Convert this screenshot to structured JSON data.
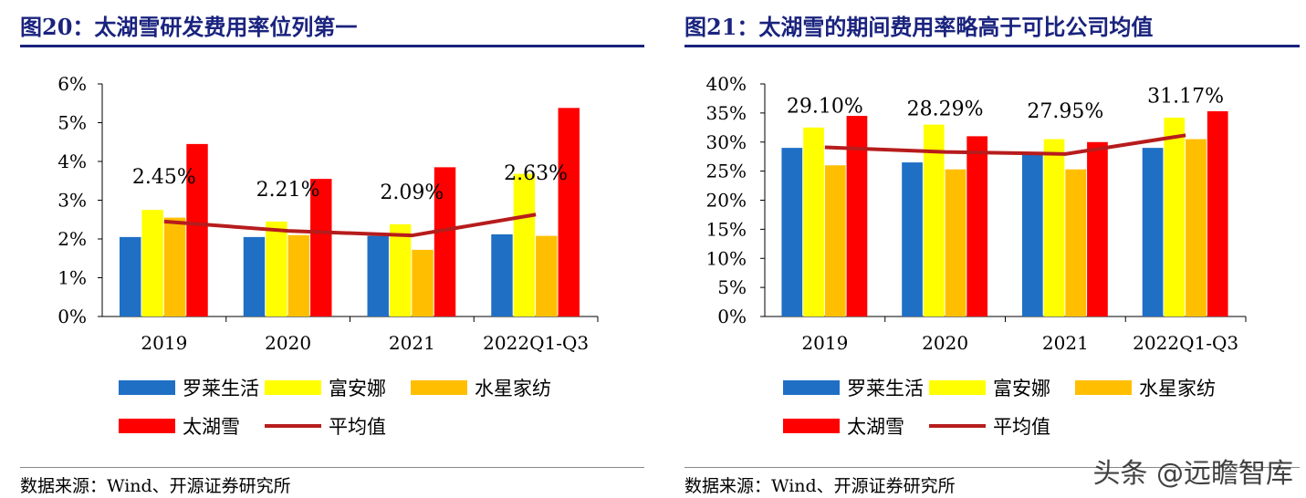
{
  "panels": [
    {
      "title": "图20：太湖雪研发费用率位列第一",
      "source": "数据来源：Wind、开源证券研究所"
    },
    {
      "title": "图21：太湖雪的期间费用率略高于可比公司均值",
      "source": "数据来源：Wind、开源证券研究所"
    }
  ],
  "watermark": "头条 @远瞻智库",
  "colors": {
    "罗莱生活": "#1f6fc5",
    "富安娜": "#ffff00",
    "水星家纺": "#ffbf00",
    "太湖雪": "#ff0000",
    "平均值": "#b71c1c",
    "title": "#1a237e"
  },
  "chart_data": [
    {
      "type": "bar",
      "title": "图20：太湖雪研发费用率位列第一",
      "categories": [
        "2019",
        "2020",
        "2021",
        "2022Q1-Q3"
      ],
      "yticks": [
        "0%",
        "1%",
        "2%",
        "3%",
        "4%",
        "5%",
        "6%"
      ],
      "ylim": [
        0,
        6
      ],
      "series": [
        {
          "name": "罗莱生活",
          "values": [
            2.05,
            2.05,
            2.08,
            2.12
          ]
        },
        {
          "name": "富安娜",
          "values": [
            2.75,
            2.45,
            2.38,
            3.68
          ]
        },
        {
          "name": "水星家纺",
          "values": [
            2.55,
            2.1,
            1.72,
            2.08
          ]
        },
        {
          "name": "太湖雪",
          "values": [
            4.45,
            3.55,
            3.85,
            5.38
          ]
        }
      ],
      "line": {
        "name": "平均值",
        "values": [
          2.45,
          2.21,
          2.09,
          2.63
        ],
        "labels": [
          "2.45%",
          "2.21%",
          "2.09%",
          "2.63%"
        ]
      },
      "legend": [
        "罗莱生活",
        "富安娜",
        "水星家纺",
        "太湖雪",
        "平均值"
      ],
      "grid": false,
      "legend_position": "bottom"
    },
    {
      "type": "bar",
      "title": "图21：太湖雪的期间费用率略高于可比公司均值",
      "categories": [
        "2019",
        "2020",
        "2021",
        "2022Q1-Q3"
      ],
      "yticks": [
        "0%",
        "5%",
        "10%",
        "15%",
        "20%",
        "25%",
        "30%",
        "35%",
        "40%"
      ],
      "ylim": [
        0,
        40
      ],
      "series": [
        {
          "name": "罗莱生活",
          "values": [
            29.0,
            26.5,
            28.0,
            29.0
          ]
        },
        {
          "name": "富安娜",
          "values": [
            32.5,
            33.0,
            30.5,
            34.2
          ]
        },
        {
          "name": "水星家纺",
          "values": [
            26.0,
            25.3,
            25.3,
            30.5
          ]
        },
        {
          "name": "太湖雪",
          "values": [
            34.5,
            31.0,
            30.0,
            35.3
          ]
        }
      ],
      "line": {
        "name": "平均值",
        "values": [
          29.1,
          28.29,
          27.95,
          31.17
        ],
        "labels": [
          "29.10%",
          "28.29%",
          "27.95%",
          "31.17%"
        ]
      },
      "legend": [
        "罗莱生活",
        "富安娜",
        "水星家纺",
        "太湖雪",
        "平均值"
      ],
      "grid": false,
      "legend_position": "bottom"
    }
  ]
}
